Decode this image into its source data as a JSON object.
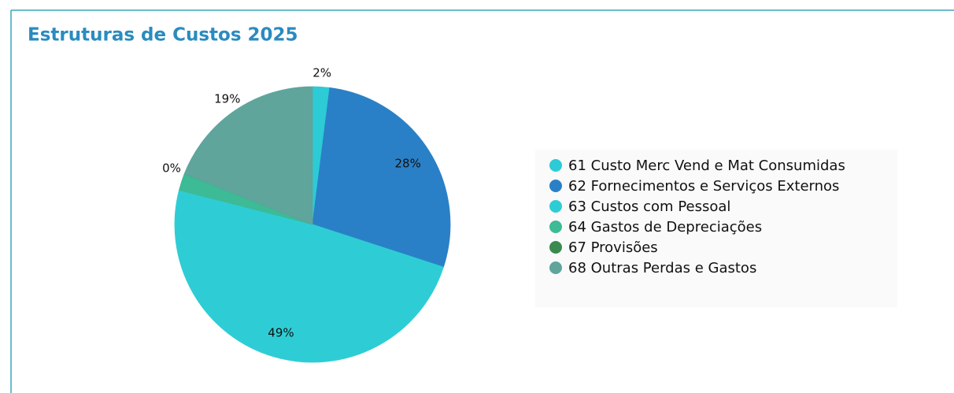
{
  "chart_data": {
    "type": "pie",
    "title": "Estruturas de Custos 2025",
    "categories": [
      "61 Custo Merc Vend e Mat Consumidas",
      "62 Fornecimentos e Serviços Externos",
      "63 Custos com Pessoal",
      "64 Gastos de Depreciações",
      "67 Provisões",
      "68 Outras Perdas e Gastos"
    ],
    "values": [
      2,
      28,
      49,
      2,
      0,
      19
    ],
    "value_labels": [
      "2%",
      "28%",
      "49%",
      null,
      "0%",
      "19%"
    ],
    "colors": [
      "#2ccbd6",
      "#2a80c6",
      "#2ecdd5",
      "#3dba96",
      "#3a8a4f",
      "#5fa59c"
    ],
    "legend": "right"
  }
}
